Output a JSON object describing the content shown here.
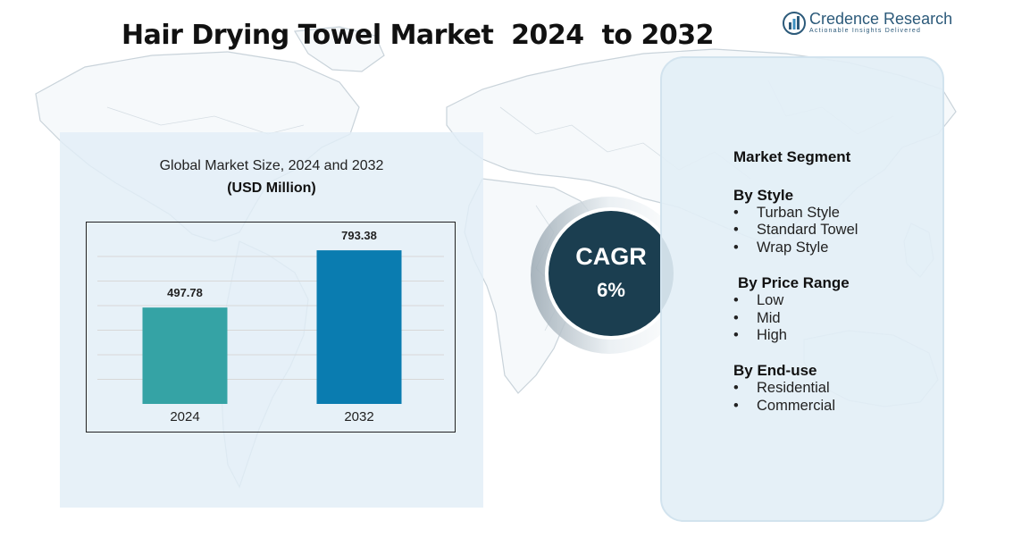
{
  "title": "Hair Drying Towel Market  2024  to 2032",
  "brand": {
    "name": "Credence Research",
    "tagline": "Actionable Insights Delivered",
    "icon": "bar-chart-icon"
  },
  "chart_data": {
    "type": "bar",
    "title": "Global Market Size, 2024 and 2032",
    "subtitle": "(USD Million)",
    "categories": [
      "2024",
      "2032"
    ],
    "values": [
      497.78,
      793.38
    ],
    "value_labels": [
      "497.78",
      "793.38"
    ],
    "colors": [
      "#35a3a5",
      "#0a7cb0"
    ],
    "grid": true,
    "ylim": [
      0,
      900
    ]
  },
  "cagr": {
    "label": "CAGR",
    "value": "6%"
  },
  "segments": {
    "heading": "Market Segment",
    "groups": [
      {
        "name": "By Style",
        "items": [
          "Turban Style",
          "Standard Towel",
          "Wrap Style"
        ]
      },
      {
        "name": "By Price Range",
        "items": [
          "Low",
          "Mid",
          "High"
        ]
      },
      {
        "name": "By End-use",
        "items": [
          "Residential",
          "Commercial"
        ]
      }
    ],
    "bullet": "•"
  },
  "colors": {
    "cagr_circle": "#1b3e50",
    "panel": "#e2eef6"
  }
}
